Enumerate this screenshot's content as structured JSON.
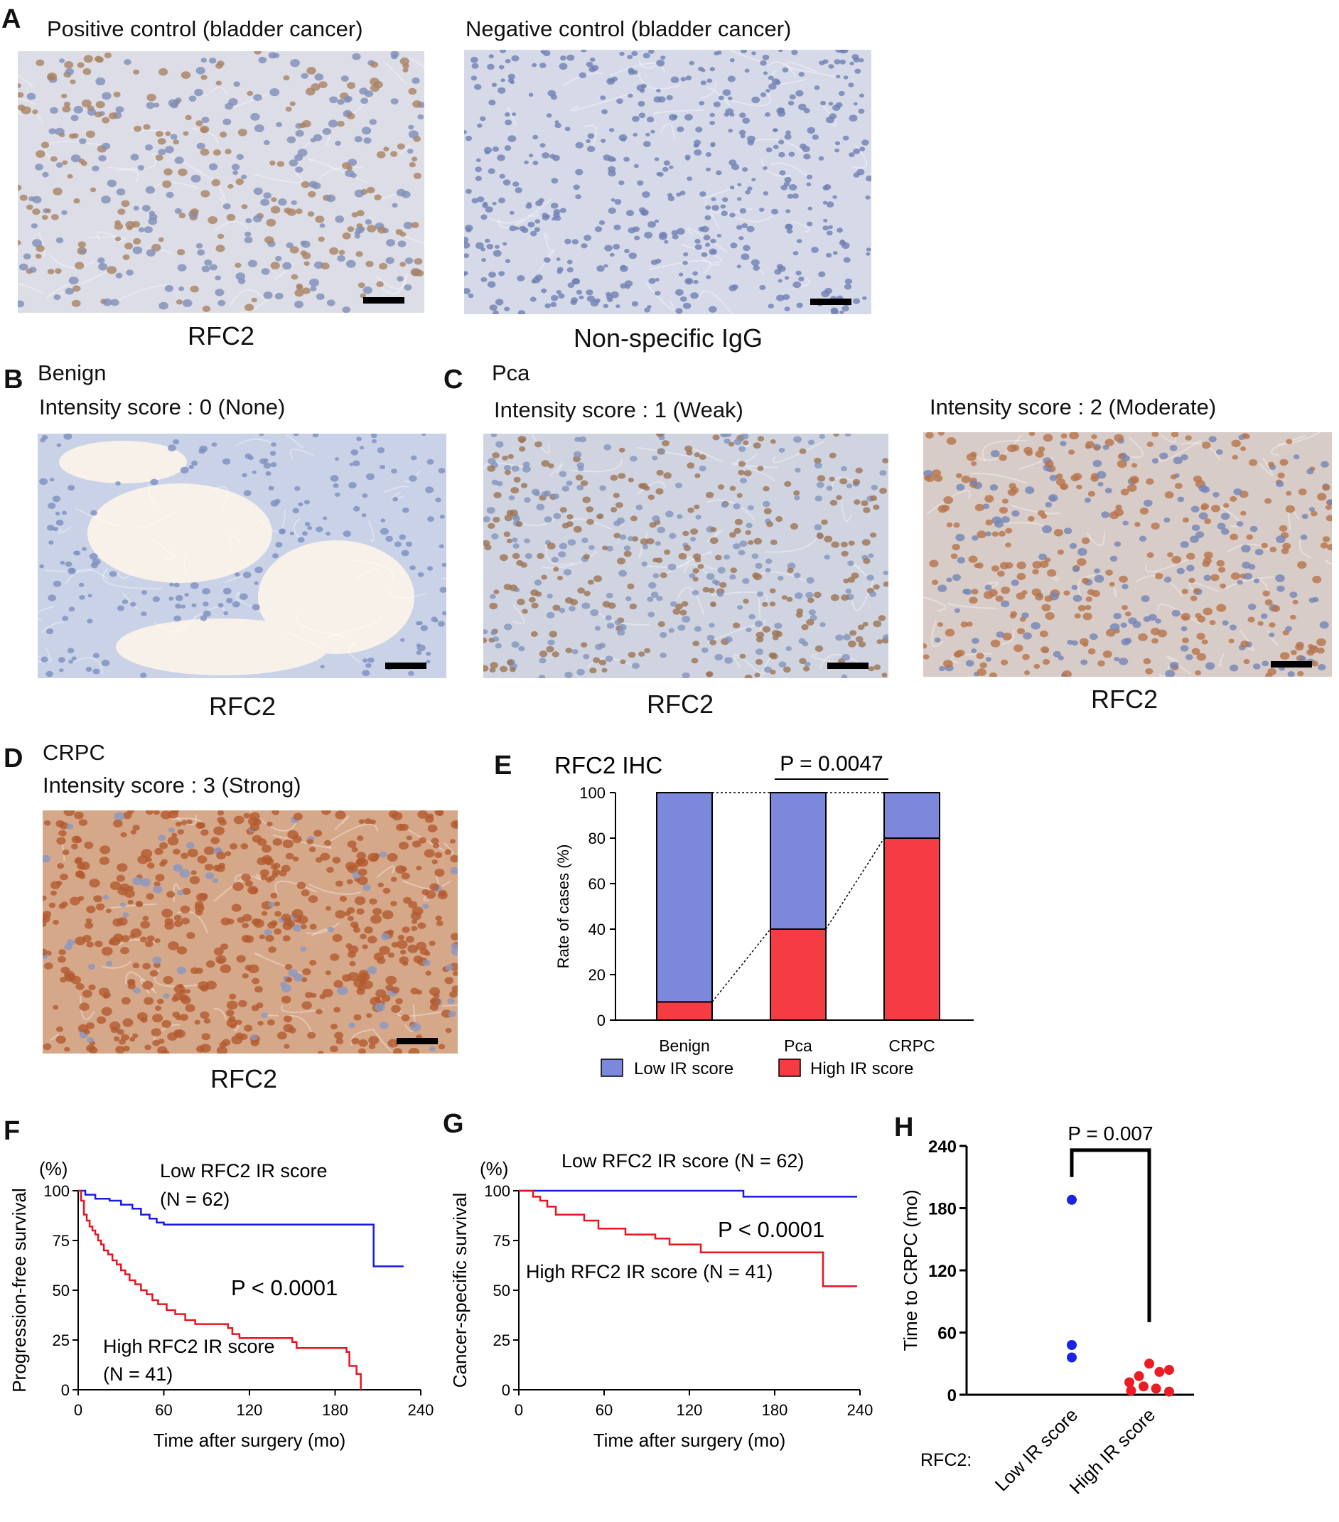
{
  "panel_letters": {
    "A": "A",
    "B": "B",
    "C": "C",
    "D": "D",
    "E": "E",
    "F": "F",
    "G": "G",
    "H": "H"
  },
  "panel_a": {
    "left_title": "Positive control (bladder cancer)",
    "right_title": "Negative control (bladder cancer)",
    "left_caption": "RFC2",
    "right_caption": "Non-specific IgG"
  },
  "panel_b": {
    "group": "Benign",
    "score": "Intensity score : 0 (None)",
    "caption": "RFC2"
  },
  "panel_c": {
    "group": "Pca",
    "score1": "Intensity score : 1 (Weak)",
    "score2": "Intensity score : 2 (Moderate)",
    "caption1": "RFC2",
    "caption2": "RFC2"
  },
  "panel_d": {
    "group": "CRPC",
    "score": "Intensity score : 3 (Strong)",
    "caption": "RFC2"
  },
  "colors": {
    "low": "#7c88dc",
    "high": "#f53c42",
    "blue_line": "#1a1ae6",
    "red_line": "#e8141e",
    "stain_neg": "#8da0c8",
    "stain_pos": "#b07a55"
  },
  "chart_data": [
    {
      "type": "bar",
      "title": "RFC2 IHC",
      "annotation": "P = 0.0047",
      "categories": [
        "Benign",
        "Pca",
        "CRPC"
      ],
      "series": [
        {
          "name": "Low IR score",
          "values": [
            92,
            60,
            20
          ]
        },
        {
          "name": "High IR score",
          "values": [
            8,
            40,
            80
          ]
        }
      ],
      "stacked": true,
      "ylabel": "Rate of cases (%)",
      "ylim": [
        0,
        100
      ],
      "yticks": [
        "0",
        "20",
        "40",
        "60",
        "80",
        "100"
      ],
      "legend": "bottom"
    },
    {
      "type": "line",
      "ylabel": "Progression-free survival",
      "yunit": "(%)",
      "xlabel": "Time after surgery (mo)",
      "xlim": [
        0,
        240
      ],
      "ylim": [
        0,
        100
      ],
      "xticks": [
        "0",
        "60",
        "120",
        "180",
        "240"
      ],
      "yticks": [
        "0",
        "25",
        "50",
        "75",
        "100"
      ],
      "annotation": "P < 0.0001",
      "series": [
        {
          "name": "Low RFC2 IR score",
          "n_label": "(N = 62)",
          "steps": [
            [
              0,
              100
            ],
            [
              5,
              98
            ],
            [
              12,
              96
            ],
            [
              22,
              95
            ],
            [
              30,
              93
            ],
            [
              38,
              91
            ],
            [
              44,
              88
            ],
            [
              50,
              86
            ],
            [
              55,
              84
            ],
            [
              60,
              83
            ],
            [
              207,
              83
            ],
            [
              207,
              62
            ],
            [
              228,
              62
            ]
          ]
        },
        {
          "name": "High RFC2  IR score",
          "n_label": "(N = 41)",
          "steps": [
            [
              0,
              100
            ],
            [
              2,
              95
            ],
            [
              4,
              88
            ],
            [
              6,
              85
            ],
            [
              8,
              82
            ],
            [
              10,
              80
            ],
            [
              12,
              78
            ],
            [
              14,
              75
            ],
            [
              16,
              73
            ],
            [
              18,
              70
            ],
            [
              21,
              68
            ],
            [
              24,
              65
            ],
            [
              27,
              63
            ],
            [
              30,
              60
            ],
            [
              33,
              58
            ],
            [
              36,
              55
            ],
            [
              40,
              53
            ],
            [
              44,
              50
            ],
            [
              48,
              48
            ],
            [
              52,
              45
            ],
            [
              56,
              43
            ],
            [
              62,
              40
            ],
            [
              68,
              38
            ],
            [
              75,
              35
            ],
            [
              82,
              33
            ],
            [
              105,
              31
            ],
            [
              108,
              28
            ],
            [
              113,
              26
            ],
            [
              150,
              24
            ],
            [
              153,
              21
            ],
            [
              188,
              19
            ],
            [
              190,
              12
            ],
            [
              195,
              8
            ],
            [
              198,
              0
            ]
          ]
        }
      ]
    },
    {
      "type": "line",
      "ylabel": "Cancer-specific survival",
      "yunit": "(%)",
      "xlabel": "Time after surgery (mo)",
      "xlim": [
        0,
        240
      ],
      "ylim": [
        0,
        100
      ],
      "xticks": [
        "0",
        "60",
        "120",
        "180",
        "240"
      ],
      "yticks": [
        "0",
        "25",
        "50",
        "75",
        "100"
      ],
      "annotation": "P < 0.0001",
      "series": [
        {
          "name": "Low RFC2  IR score (N = 62)",
          "steps": [
            [
              0,
              100
            ],
            [
              158,
              100
            ],
            [
              158,
              97
            ],
            [
              238,
              97
            ]
          ]
        },
        {
          "name": "High RFC2 IR score (N = 41)",
          "steps": [
            [
              0,
              100
            ],
            [
              10,
              97
            ],
            [
              15,
              95
            ],
            [
              20,
              92
            ],
            [
              26,
              88
            ],
            [
              46,
              85
            ],
            [
              56,
              81
            ],
            [
              75,
              78
            ],
            [
              96,
              76
            ],
            [
              106,
              73
            ],
            [
              128,
              69
            ],
            [
              212,
              69
            ],
            [
              214,
              52
            ],
            [
              238,
              52
            ]
          ]
        }
      ]
    },
    {
      "type": "scatter",
      "ylabel": "Time to CRPC (mo)",
      "xlabel_prefix": "RFC2:",
      "categories": [
        "Low IR score",
        "High IR score"
      ],
      "ylim": [
        0,
        240
      ],
      "yticks": [
        "0",
        "60",
        "120",
        "180",
        "240"
      ],
      "annotation": "P = 0.007",
      "series": [
        {
          "name": "Low IR score",
          "points": [
            [
              0,
              188
            ],
            [
              0,
              48
            ],
            [
              0,
              36
            ]
          ]
        },
        {
          "name": "High IR score",
          "points": [
            [
              -0.35,
              12
            ],
            [
              -0.18,
              18
            ],
            [
              0,
              30
            ],
            [
              0.18,
              22
            ],
            [
              0.35,
              24
            ],
            [
              -0.32,
              4
            ],
            [
              -0.1,
              8
            ],
            [
              0.12,
              6
            ],
            [
              0.35,
              3
            ]
          ]
        }
      ]
    }
  ]
}
